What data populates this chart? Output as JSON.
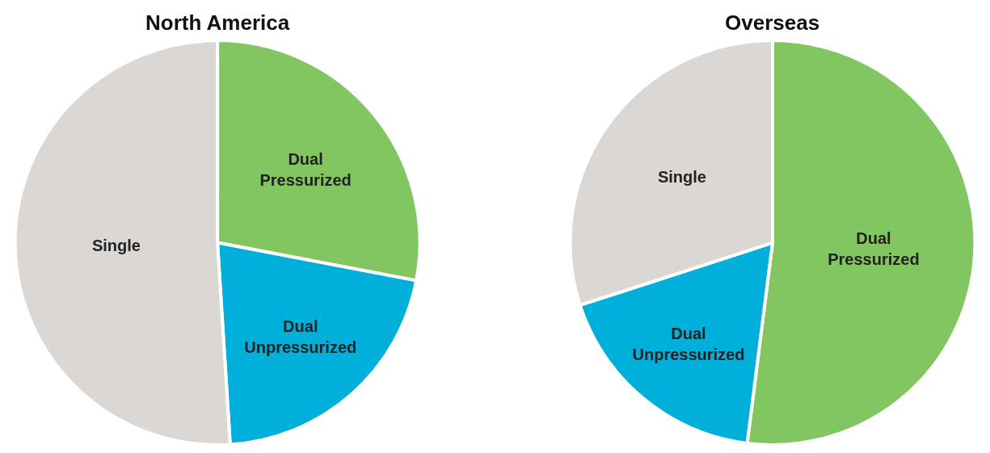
{
  "chart_data": [
    {
      "type": "pie",
      "title": "North America",
      "categories": [
        "Dual Pressurized",
        "Dual Unpressurized",
        "Single"
      ],
      "values": [
        28,
        21,
        51
      ],
      "colors": [
        "#82c662",
        "#00b0db",
        "#dbd7d4"
      ],
      "legend": false
    },
    {
      "type": "pie",
      "title": "Overseas",
      "categories": [
        "Dual Pressurized",
        "Dual Unpressurized",
        "Single"
      ],
      "values": [
        52,
        18,
        30
      ],
      "colors": [
        "#82c662",
        "#00b0db",
        "#dbd7d4"
      ],
      "legend": false
    }
  ]
}
